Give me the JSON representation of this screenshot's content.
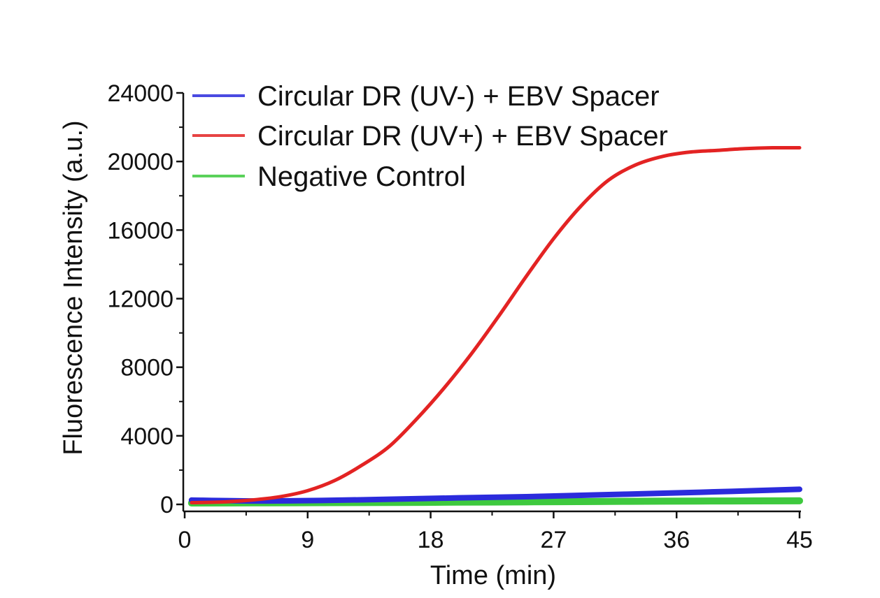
{
  "chart_data": {
    "type": "line",
    "title": "",
    "xlabel": "Time (min)",
    "ylabel": "Fluorescence Intensity (a.u.)",
    "xlim": [
      0,
      45
    ],
    "ylim": [
      0,
      24000
    ],
    "x_ticks": [
      "0",
      "9",
      "18",
      "27",
      "36",
      "45"
    ],
    "y_ticks": [
      "0",
      "4000",
      "8000",
      "12000",
      "16000",
      "20000",
      "24000"
    ],
    "grid": false,
    "legend_position": "top-left",
    "series": [
      {
        "name": "Circular DR (UV-) + EBV Spacer",
        "color": "#2b2bdc",
        "x": [
          0.5,
          5,
          10,
          15,
          20,
          25,
          30,
          35,
          40,
          45
        ],
        "y": [
          250,
          200,
          230,
          300,
          380,
          450,
          550,
          650,
          760,
          880
        ]
      },
      {
        "name": "Circular DR (UV+) + EBV Spacer",
        "color": "#e32323",
        "x": [
          0.5,
          3,
          5,
          7,
          9,
          11,
          13,
          15,
          17,
          19,
          21,
          23,
          25,
          27,
          29,
          31,
          33,
          35,
          37,
          39,
          41,
          43,
          45
        ],
        "y": [
          100,
          150,
          260,
          450,
          800,
          1400,
          2300,
          3400,
          5000,
          6800,
          8800,
          11000,
          13300,
          15500,
          17400,
          18900,
          19800,
          20300,
          20550,
          20650,
          20750,
          20800,
          20800
        ]
      },
      {
        "name": "Negative Control",
        "color": "#3ec93e",
        "x": [
          0.5,
          5,
          10,
          15,
          20,
          25,
          30,
          35,
          40,
          45
        ],
        "y": [
          80,
          90,
          100,
          110,
          130,
          150,
          170,
          190,
          200,
          210
        ]
      }
    ]
  }
}
